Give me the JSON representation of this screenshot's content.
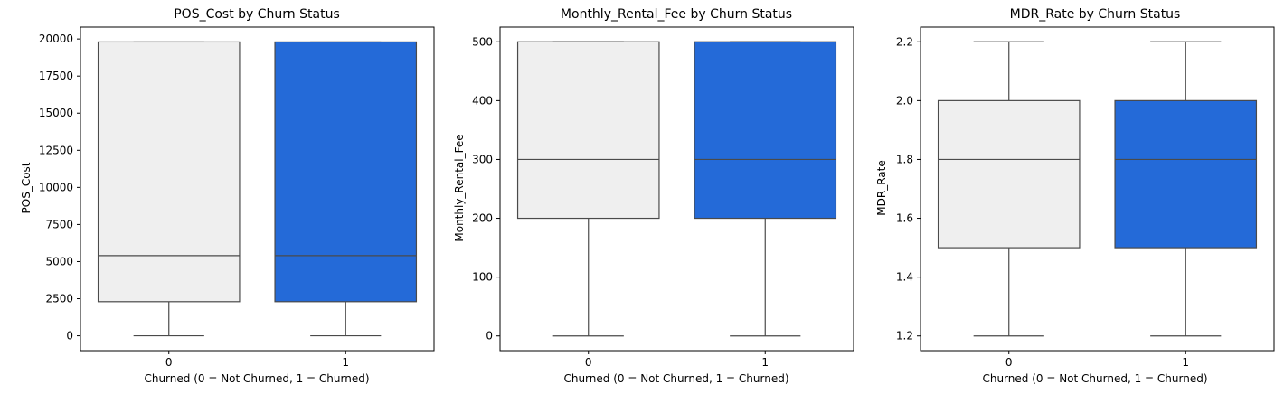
{
  "colors": {
    "not_churned_fill": "#efefef",
    "churned_fill": "#246ad8",
    "box_edge": "#4a4a4a",
    "axes_edge": "#000000"
  },
  "chart_data": [
    {
      "type": "box",
      "title": "POS_Cost by Churn Status",
      "xlabel": "Churned (0 = Not Churned, 1 = Churned)",
      "ylabel": "POS_Cost",
      "categories": [
        "0",
        "1"
      ],
      "ylim": [
        -1000,
        20800
      ],
      "yticks": [
        0,
        2500,
        5000,
        7500,
        10000,
        12500,
        15000,
        17500,
        20000
      ],
      "grid": false,
      "boxes": [
        {
          "category": "0",
          "whisker_low": 0,
          "q1": 2300,
          "median": 5400,
          "q3": 19800,
          "whisker_high": 19800,
          "color": "#efefef"
        },
        {
          "category": "1",
          "whisker_low": 0,
          "q1": 2300,
          "median": 5400,
          "q3": 19800,
          "whisker_high": 19800,
          "color": "#246ad8"
        }
      ]
    },
    {
      "type": "box",
      "title": "Monthly_Rental_Fee by Churn Status",
      "xlabel": "Churned (0 = Not Churned, 1 = Churned)",
      "ylabel": "Monthly_Rental_Fee",
      "categories": [
        "0",
        "1"
      ],
      "ylim": [
        -25,
        525
      ],
      "yticks": [
        0,
        100,
        200,
        300,
        400,
        500
      ],
      "grid": false,
      "boxes": [
        {
          "category": "0",
          "whisker_low": 0,
          "q1": 200,
          "median": 300,
          "q3": 500,
          "whisker_high": 500,
          "color": "#efefef"
        },
        {
          "category": "1",
          "whisker_low": 0,
          "q1": 200,
          "median": 300,
          "q3": 500,
          "whisker_high": 500,
          "color": "#246ad8"
        }
      ]
    },
    {
      "type": "box",
      "title": "MDR_Rate by Churn Status",
      "xlabel": "Churned (0 = Not Churned, 1 = Churned)",
      "ylabel": "MDR_Rate",
      "categories": [
        "0",
        "1"
      ],
      "ylim": [
        1.15,
        2.25
      ],
      "yticks": [
        1.2,
        1.4,
        1.6,
        1.8,
        2.0,
        2.2
      ],
      "ytick_labels": [
        "1.2",
        "1.4",
        "1.6",
        "1.8",
        "2.0",
        "2.2"
      ],
      "grid": false,
      "boxes": [
        {
          "category": "0",
          "whisker_low": 1.2,
          "q1": 1.5,
          "median": 1.8,
          "q3": 2.0,
          "whisker_high": 2.2,
          "color": "#efefef"
        },
        {
          "category": "1",
          "whisker_low": 1.2,
          "q1": 1.5,
          "median": 1.8,
          "q3": 2.0,
          "whisker_high": 2.2,
          "color": "#246ad8"
        }
      ]
    }
  ]
}
